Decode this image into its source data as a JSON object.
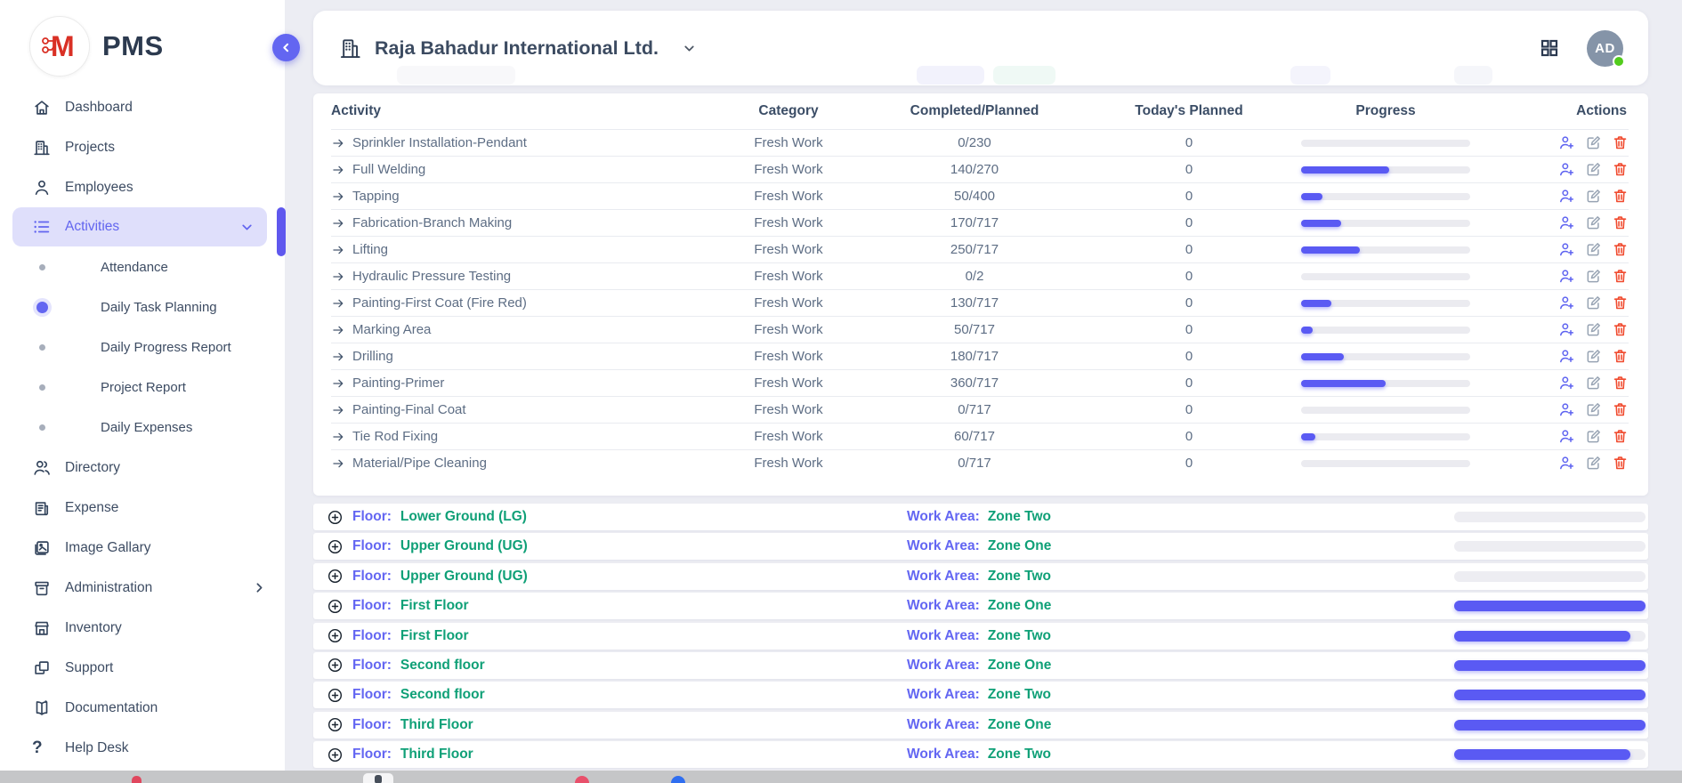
{
  "app": {
    "name": "PMS"
  },
  "sidebar": {
    "items": [
      {
        "type": "item",
        "label": "Dashboard",
        "icon": "home"
      },
      {
        "type": "item",
        "label": "Projects",
        "icon": "building"
      },
      {
        "type": "item",
        "label": "Employees",
        "icon": "person"
      },
      {
        "type": "item",
        "label": "Activities",
        "icon": "list",
        "active": true,
        "trailing_icon": "chevron-down"
      },
      {
        "type": "sub",
        "label": "Attendance"
      },
      {
        "type": "sub",
        "label": "Daily Task Planning",
        "active": true
      },
      {
        "type": "sub",
        "label": "Daily Progress Report"
      },
      {
        "type": "sub",
        "label": "Project Report"
      },
      {
        "type": "sub",
        "label": "Daily Expenses"
      },
      {
        "type": "item",
        "label": "Directory",
        "icon": "people"
      },
      {
        "type": "item",
        "label": "Expense",
        "icon": "receipt"
      },
      {
        "type": "item",
        "label": "Image Gallary",
        "icon": "image"
      },
      {
        "type": "item",
        "label": "Administration",
        "icon": "archive",
        "trailing_icon": "chevron-right"
      },
      {
        "type": "item",
        "label": "Inventory",
        "icon": "store"
      },
      {
        "type": "item",
        "label": "Support",
        "icon": "copy"
      },
      {
        "type": "item",
        "label": "Documentation",
        "icon": "book"
      },
      {
        "type": "item",
        "label": "Help Desk",
        "icon": "question"
      }
    ]
  },
  "header": {
    "company_name": "Raja Bahadur International Ltd.",
    "avatar_initials": "AD",
    "status": "online"
  },
  "table": {
    "columns": [
      "Activity",
      "Category",
      "Completed/Planned",
      "Today's Planned",
      "Progress",
      "Actions"
    ],
    "rows": [
      {
        "activity": "Sprinkler Installation-Pendant",
        "category": "Fresh Work",
        "completed": 0,
        "planned": 230,
        "todays_planned": 0
      },
      {
        "activity": "Full Welding",
        "category": "Fresh Work",
        "completed": 140,
        "planned": 270,
        "todays_planned": 0
      },
      {
        "activity": "Tapping",
        "category": "Fresh Work",
        "completed": 50,
        "planned": 400,
        "todays_planned": 0
      },
      {
        "activity": "Fabrication-Branch Making",
        "category": "Fresh Work",
        "completed": 170,
        "planned": 717,
        "todays_planned": 0
      },
      {
        "activity": "Lifting",
        "category": "Fresh Work",
        "completed": 250,
        "planned": 717,
        "todays_planned": 0
      },
      {
        "activity": "Hydraulic Pressure Testing",
        "category": "Fresh Work",
        "completed": 0,
        "planned": 2,
        "todays_planned": 0
      },
      {
        "activity": "Painting-First Coat (Fire Red)",
        "category": "Fresh Work",
        "completed": 130,
        "planned": 717,
        "todays_planned": 0
      },
      {
        "activity": "Marking Area",
        "category": "Fresh Work",
        "completed": 50,
        "planned": 717,
        "todays_planned": 0
      },
      {
        "activity": "Drilling",
        "category": "Fresh Work",
        "completed": 180,
        "planned": 717,
        "todays_planned": 0
      },
      {
        "activity": "Painting-Primer",
        "category": "Fresh Work",
        "completed": 360,
        "planned": 717,
        "todays_planned": 0
      },
      {
        "activity": "Painting-Final Coat",
        "category": "Fresh Work",
        "completed": 0,
        "planned": 717,
        "todays_planned": 0
      },
      {
        "activity": "Tie Rod Fixing",
        "category": "Fresh Work",
        "completed": 60,
        "planned": 717,
        "todays_planned": 0
      },
      {
        "activity": "Material/Pipe Cleaning",
        "category": "Fresh Work",
        "completed": 0,
        "planned": 717,
        "todays_planned": 0
      }
    ]
  },
  "floors": {
    "floor_label": "Floor:",
    "work_area_label": "Work Area:",
    "rows": [
      {
        "floor": "Lower Ground (LG)",
        "work_area": "Zone Two",
        "progress_pct": 0
      },
      {
        "floor": "Upper Ground (UG)",
        "work_area": "Zone One",
        "progress_pct": 0
      },
      {
        "floor": "Upper Ground (UG)",
        "work_area": "Zone Two",
        "progress_pct": 0
      },
      {
        "floor": "First Floor",
        "work_area": "Zone One",
        "progress_pct": 100
      },
      {
        "floor": "First Floor",
        "work_area": "Zone Two",
        "progress_pct": 92
      },
      {
        "floor": "Second floor",
        "work_area": "Zone One",
        "progress_pct": 100
      },
      {
        "floor": "Second floor",
        "work_area": "Zone Two",
        "progress_pct": 100
      },
      {
        "floor": "Third Floor",
        "work_area": "Zone One",
        "progress_pct": 100
      },
      {
        "floor": "Third Floor",
        "work_area": "Zone Two",
        "progress_pct": 92
      }
    ]
  },
  "colors": {
    "accent": "#5a5af3",
    "link_indigo": "#6366f1",
    "value_green": "#0fa077",
    "danger": "#f04a2e",
    "online_green": "#52cc1c",
    "avatar_bg": "#8594a8",
    "logo_red": "#d93025"
  }
}
